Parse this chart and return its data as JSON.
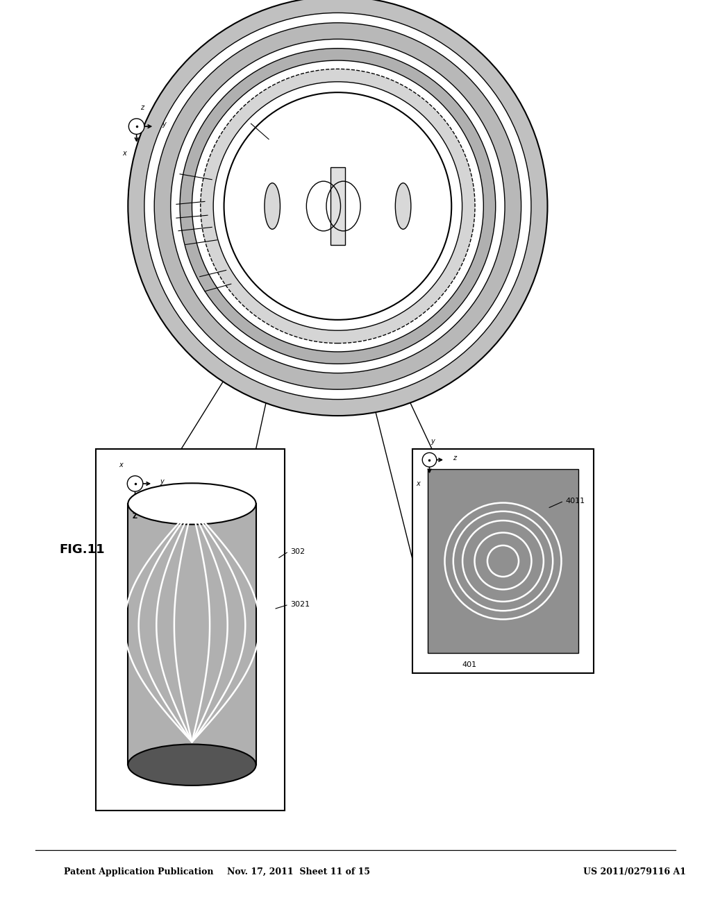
{
  "title_left": "Patent Application Publication",
  "title_mid": "Nov. 17, 2011  Sheet 11 of 15",
  "title_right": "US 2011/0279116 A1",
  "fig_label": "FIG.11",
  "bg_color": "#ffffff",
  "gray_color": "#aaaaaa",
  "dark_gray": "#888888",
  "line_color": "#000000",
  "white_line": "#ffffff"
}
